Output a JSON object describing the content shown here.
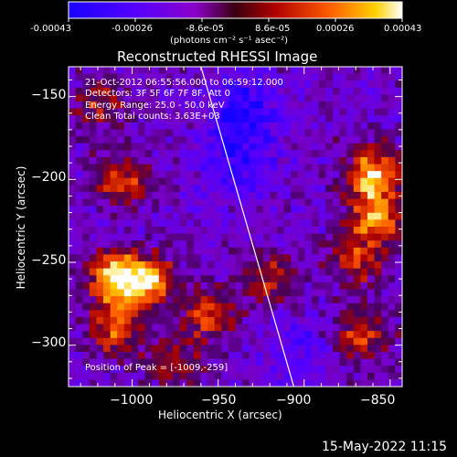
{
  "colorbar": {
    "ticks": [
      "-0.00043",
      "-0.00026",
      "-8.6e-05",
      "8.6e-05",
      "0.00026",
      "0.00043"
    ],
    "unit_label": "(photons cm⁻² s⁻¹ asec⁻²)"
  },
  "plot": {
    "title": "Reconstructed RHESSI Image",
    "xlabel": "Heliocentric X (arcsec)",
    "ylabel": "Heliocentric Y (arcsec)",
    "info_lines": [
      "21-Oct-2012 06:55:56.000 to 06:59:12.000",
      "Detectors: 3F 5F 6F 7F 8F, Att 0",
      "Energy Range: 25.0 - 50.0 keV",
      "Clean     Total counts: 3.63E+03"
    ],
    "peak_label": "Position of Peak = [-1009,-259]"
  },
  "footer": {
    "timestamp": "15-May-2022 11:15"
  },
  "colors": {
    "hot": "#ff6a00",
    "cool": "#2a2aff",
    "background": "#000000"
  },
  "chart_data": {
    "type": "heatmap",
    "title": "Reconstructed RHESSI Image",
    "xlabel": "Heliocentric X (arcsec)",
    "ylabel": "Heliocentric Y (arcsec)",
    "xlim": [
      -1037,
      -843
    ],
    "ylim": [
      -325,
      -132
    ],
    "x_ticks": [
      -1000,
      -950,
      -900,
      -850
    ],
    "y_ticks": [
      -150,
      -200,
      -250,
      -300
    ],
    "x_tick_labels": [
      "−1000",
      "−950",
      "−900",
      "−850"
    ],
    "y_tick_labels": [
      "−150",
      "−200",
      "−250",
      "−300"
    ],
    "colorbar_range": [
      -0.00043,
      0.00043
    ],
    "peak": [
      -1009,
      -259
    ],
    "limb_line": [
      [
        -960,
        -132
      ],
      [
        -906,
        -325
      ]
    ],
    "bright_regions": [
      {
        "x": -1009,
        "y": -259,
        "intensity": 1.0
      },
      {
        "x": -990,
        "y": -262,
        "intensity": 0.75
      },
      {
        "x": -1010,
        "y": -290,
        "intensity": 0.6
      },
      {
        "x": -860,
        "y": -198,
        "intensity": 0.95
      },
      {
        "x": -858,
        "y": -225,
        "intensity": 0.75
      },
      {
        "x": -1005,
        "y": -200,
        "intensity": 0.6
      },
      {
        "x": -1020,
        "y": -155,
        "intensity": 0.45
      },
      {
        "x": -955,
        "y": -282,
        "intensity": 0.55
      },
      {
        "x": -975,
        "y": -310,
        "intensity": 0.4
      },
      {
        "x": -870,
        "y": -250,
        "intensity": 0.5
      },
      {
        "x": -865,
        "y": -295,
        "intensity": 0.55
      },
      {
        "x": -920,
        "y": -260,
        "intensity": 0.45
      }
    ],
    "dark_regions": [
      {
        "x": -935,
        "y": -160,
        "intensity": 0.8
      },
      {
        "x": -940,
        "y": -195,
        "intensity": 0.5
      },
      {
        "x": -905,
        "y": -305,
        "intensity": 0.35
      }
    ]
  }
}
